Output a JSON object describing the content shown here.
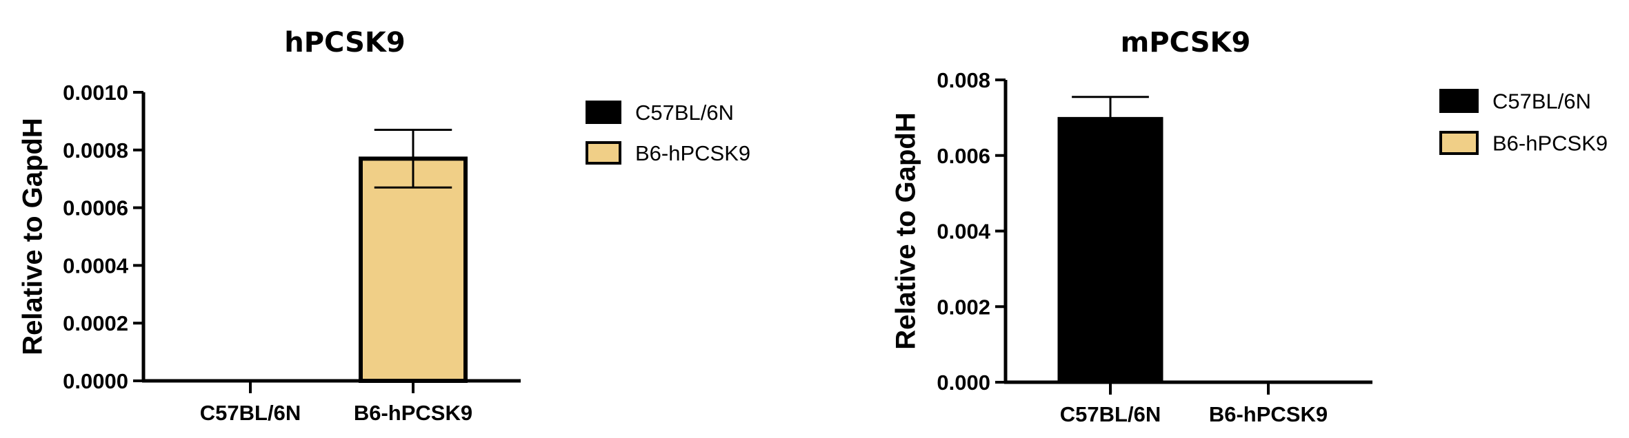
{
  "chart_data": [
    {
      "type": "bar",
      "title": "hPCSK9",
      "ylabel": "Relative to GapdH",
      "xlabel": "",
      "categories": [
        "C57BL/6N",
        "B6-hPCSK9"
      ],
      "values": [
        0.0,
        0.00077
      ],
      "error": [
        0.0,
        0.0001
      ],
      "ylim": [
        0,
        0.001
      ],
      "yticks": [
        "0.0000",
        "0.0002",
        "0.0004",
        "0.0006",
        "0.0008",
        "0.0010"
      ],
      "ytick_values": [
        0,
        0.0002,
        0.0004,
        0.0006,
        0.0008,
        0.001
      ],
      "colors": [
        "#000000",
        "#F0CF87"
      ],
      "legend": [
        "C57BL/6N",
        "B6-hPCSK9"
      ],
      "legend_position": "right",
      "grid": false
    },
    {
      "type": "bar",
      "title": "mPCSK9",
      "ylabel": "Relative to GapdH",
      "xlabel": "",
      "categories": [
        "C57BL/6N",
        "B6-hPCSK9"
      ],
      "values": [
        0.007,
        0.0
      ],
      "error": [
        0.00055,
        0.0
      ],
      "ylim": [
        0,
        0.008
      ],
      "yticks": [
        "0.000",
        "0.002",
        "0.004",
        "0.006",
        "0.008"
      ],
      "ytick_values": [
        0,
        0.002,
        0.004,
        0.006,
        0.008
      ],
      "colors": [
        "#000000",
        "#F0CF87"
      ],
      "legend": [
        "C57BL/6N",
        "B6-hPCSK9"
      ],
      "legend_position": "right",
      "grid": false
    }
  ]
}
